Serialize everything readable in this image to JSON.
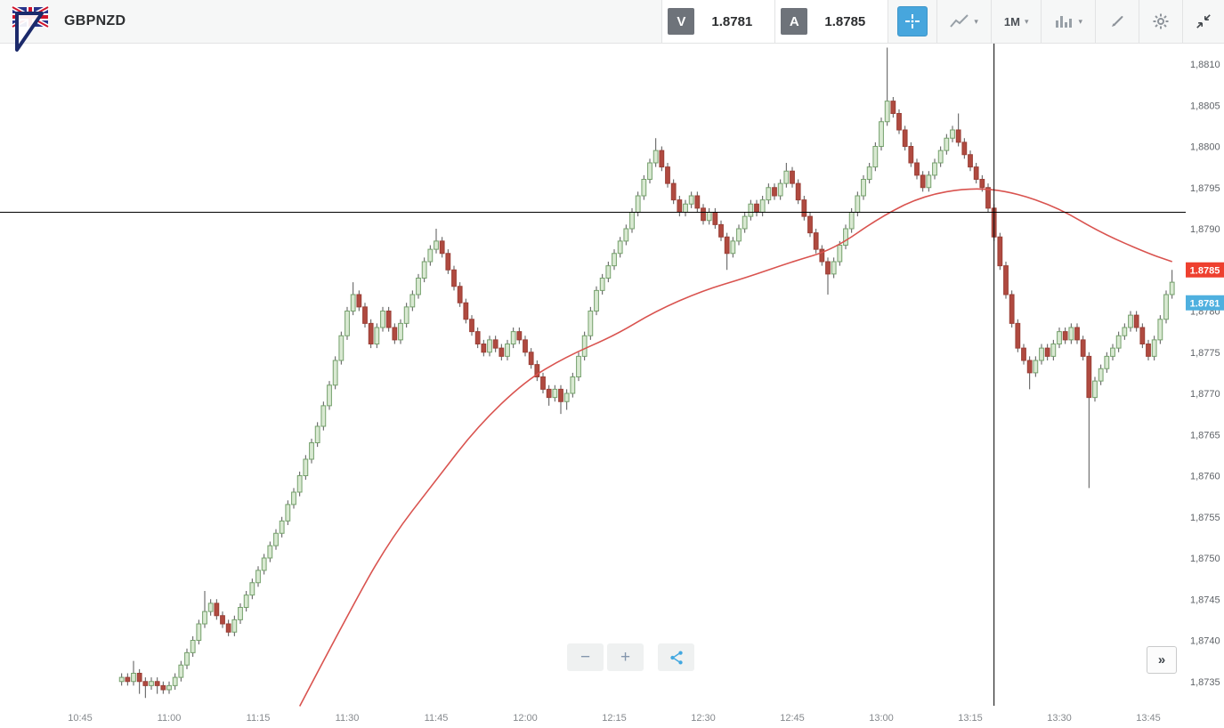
{
  "toolbar": {
    "symbol": "GBPNZD",
    "sell": {
      "label": "V",
      "price": "1.8781"
    },
    "buy": {
      "label": "A",
      "price": "1.8785"
    },
    "timeframe": "1M"
  },
  "icons": {
    "chevron_down": "▾"
  },
  "chart_controls": {
    "zoom_out": "−",
    "zoom_in": "+",
    "expand": "»"
  },
  "chart_data": {
    "type": "candlestick",
    "symbol": "GBPNZD",
    "interval": "1m",
    "start_time": "10:52",
    "pip_base": 1.87,
    "pip_size": 0.0001,
    "units_note": "ohlc and ma points are pips (0.0001) above pip_base",
    "visible_price_range": [
      1.8732,
      1.8813
    ],
    "x_ticks": [
      "10:45",
      "11:00",
      "11:15",
      "11:30",
      "11:45",
      "12:00",
      "12:15",
      "12:30",
      "12:45",
      "13:00",
      "13:15",
      "13:30",
      "13:45"
    ],
    "y_ticks": [
      "1,8810",
      "1,8805",
      "1,8800",
      "1,8795",
      "1,8790",
      "1,8785",
      "1,8780",
      "1,8775",
      "1,8770",
      "1,8765",
      "1,8760",
      "1,8755",
      "1,8750",
      "1,8745",
      "1,8740",
      "1,8735"
    ],
    "price_line": 1.8792,
    "time_marker": "13:19",
    "bid_badge": {
      "value": 1.8781,
      "text": "1.8781",
      "color": "#4fb0df"
    },
    "ask_badge": {
      "value": 1.8785,
      "text": "1.8785",
      "color": "#ee402f"
    },
    "ma_line": {
      "name": "moving-average",
      "color": "#d9534f",
      "points": [
        [
          31,
          32
        ],
        [
          39,
          43
        ],
        [
          46,
          52
        ],
        [
          54,
          59.5
        ],
        [
          61,
          66
        ],
        [
          69,
          71.5
        ],
        [
          76,
          74.5
        ],
        [
          84,
          77
        ],
        [
          91,
          80
        ],
        [
          99,
          82.5
        ],
        [
          106,
          84
        ],
        [
          114,
          86
        ],
        [
          121,
          87.5
        ],
        [
          129,
          91.5
        ],
        [
          136,
          94
        ],
        [
          144,
          95
        ],
        [
          151,
          94.5
        ],
        [
          159,
          92.5
        ],
        [
          166,
          89.5
        ],
        [
          174,
          87
        ],
        [
          178,
          86
        ]
      ]
    },
    "colors": {
      "up_fill": "#d9e9d2",
      "up_stroke": "#74a06b",
      "down_fill": "#b04a40",
      "down_stroke": "#9a3f36",
      "wick": "#555555",
      "price_line": "#000000",
      "time_marker": "#000000"
    },
    "candles": [
      [
        35,
        36,
        34.5,
        35.5
      ],
      [
        35.5,
        36,
        34.5,
        35
      ],
      [
        35,
        37.5,
        34.5,
        36
      ],
      [
        36,
        36.5,
        33.5,
        35
      ],
      [
        35,
        35.5,
        33,
        34.5
      ],
      [
        34.5,
        35.5,
        34,
        35
      ],
      [
        35,
        35.5,
        33.5,
        34.5
      ],
      [
        34.5,
        35,
        33.5,
        34
      ],
      [
        34,
        35,
        33.5,
        34.5
      ],
      [
        34.5,
        36,
        34,
        35.5
      ],
      [
        35.5,
        37.5,
        35,
        37
      ],
      [
        37,
        39,
        36.5,
        38.5
      ],
      [
        38.5,
        40.5,
        38,
        40
      ],
      [
        40,
        42.5,
        39.5,
        42
      ],
      [
        42,
        46,
        41.5,
        43.5
      ],
      [
        43.5,
        45,
        43,
        44.5
      ],
      [
        44.5,
        45,
        42.5,
        43
      ],
      [
        43,
        43.5,
        41.5,
        42
      ],
      [
        42,
        42.5,
        40.5,
        41
      ],
      [
        41,
        43,
        40.5,
        42.5
      ],
      [
        42.5,
        44.5,
        42,
        44
      ],
      [
        44,
        46,
        43.5,
        45.5
      ],
      [
        45.5,
        47.5,
        45,
        47
      ],
      [
        47,
        49,
        46.5,
        48.5
      ],
      [
        48.5,
        50.5,
        48,
        50
      ],
      [
        50,
        52,
        49.5,
        51.5
      ],
      [
        51.5,
        53.5,
        51,
        53
      ],
      [
        53,
        55,
        52.5,
        54.5
      ],
      [
        54.5,
        57,
        54,
        56.5
      ],
      [
        56.5,
        58.5,
        56,
        58
      ],
      [
        58,
        60.5,
        57.5,
        60
      ],
      [
        60,
        62.5,
        59.5,
        62
      ],
      [
        62,
        64.5,
        61.5,
        64
      ],
      [
        64,
        66.5,
        63.5,
        66
      ],
      [
        66,
        69,
        65.5,
        68.5
      ],
      [
        68.5,
        71.5,
        68,
        71
      ],
      [
        71,
        74.5,
        70.5,
        74
      ],
      [
        74,
        77.5,
        73.5,
        77
      ],
      [
        77,
        80.5,
        76.5,
        80
      ],
      [
        80,
        83.5,
        79.5,
        82
      ],
      [
        82,
        82.5,
        80,
        80.5
      ],
      [
        80.5,
        81,
        78,
        78.5
      ],
      [
        78.5,
        79,
        75.5,
        76
      ],
      [
        76,
        78.5,
        75.5,
        78
      ],
      [
        78,
        80.5,
        77.5,
        80
      ],
      [
        80,
        80.5,
        77.5,
        78
      ],
      [
        78,
        78.5,
        76,
        76.5
      ],
      [
        76.5,
        79,
        76,
        78.5
      ],
      [
        78.5,
        81,
        78,
        80.5
      ],
      [
        80.5,
        82.5,
        80,
        82
      ],
      [
        82,
        84.5,
        81.5,
        84
      ],
      [
        84,
        86.5,
        83.5,
        86
      ],
      [
        86,
        88,
        85.5,
        87.5
      ],
      [
        87.5,
        90,
        87,
        88.5
      ],
      [
        88.5,
        89,
        86.5,
        87
      ],
      [
        87,
        87.5,
        84.5,
        85
      ],
      [
        85,
        85.5,
        82.5,
        83
      ],
      [
        83,
        83.5,
        80.5,
        81
      ],
      [
        81,
        81.5,
        78.5,
        79
      ],
      [
        79,
        79.5,
        77,
        77.5
      ],
      [
        77.5,
        78,
        75.5,
        76
      ],
      [
        76,
        76.5,
        74.5,
        75
      ],
      [
        75,
        77,
        74.5,
        76.5
      ],
      [
        76.5,
        77,
        75,
        75.5
      ],
      [
        75.5,
        76,
        74,
        74.5
      ],
      [
        74.5,
        76.5,
        74,
        76
      ],
      [
        76,
        78,
        75.5,
        77.5
      ],
      [
        77.5,
        78,
        76,
        76.5
      ],
      [
        76.5,
        77,
        74.5,
        75
      ],
      [
        75,
        75.5,
        73,
        73.5
      ],
      [
        73.5,
        74,
        71.5,
        72
      ],
      [
        72,
        72.5,
        70,
        70.5
      ],
      [
        70.5,
        71,
        68.5,
        69.5
      ],
      [
        69.5,
        71,
        69,
        70.5
      ],
      [
        70.5,
        71,
        67.5,
        69
      ],
      [
        69,
        70.5,
        68,
        70
      ],
      [
        70,
        72.5,
        69.5,
        72
      ],
      [
        72,
        75,
        71.5,
        74.5
      ],
      [
        74.5,
        77.5,
        74,
        77
      ],
      [
        77,
        80.5,
        76.5,
        80
      ],
      [
        80,
        83,
        79.5,
        82.5
      ],
      [
        82.5,
        84.5,
        82,
        84
      ],
      [
        84,
        86,
        83.5,
        85.5
      ],
      [
        85.5,
        87.5,
        85,
        87
      ],
      [
        87,
        89,
        86.5,
        88.5
      ],
      [
        88.5,
        90.5,
        88,
        90
      ],
      [
        90,
        92.5,
        89.5,
        92
      ],
      [
        92,
        94.5,
        91.5,
        94
      ],
      [
        94,
        96.5,
        93.5,
        96
      ],
      [
        96,
        98.5,
        95.5,
        98
      ],
      [
        98,
        101,
        97.5,
        99.5
      ],
      [
        99.5,
        100,
        97,
        97.5
      ],
      [
        97.5,
        98,
        95,
        95.5
      ],
      [
        95.5,
        96,
        93,
        93.5
      ],
      [
        93.5,
        94,
        91.5,
        92
      ],
      [
        92,
        93.5,
        91.5,
        93
      ],
      [
        93,
        94.5,
        92.5,
        94
      ],
      [
        94,
        94.5,
        92,
        92.5
      ],
      [
        92.5,
        93,
        90.5,
        91
      ],
      [
        91,
        92.5,
        90.5,
        92
      ],
      [
        92,
        92.5,
        90,
        90.5
      ],
      [
        90.5,
        91,
        88.5,
        89
      ],
      [
        89,
        89.5,
        85,
        87
      ],
      [
        87,
        89,
        86.5,
        88.5
      ],
      [
        88.5,
        90.5,
        88,
        90
      ],
      [
        90,
        92,
        89.5,
        91.5
      ],
      [
        91.5,
        93.5,
        91,
        93
      ],
      [
        93,
        93.5,
        91.5,
        92
      ],
      [
        92,
        94,
        91.5,
        93.5
      ],
      [
        93.5,
        95.5,
        93,
        95
      ],
      [
        95,
        95.5,
        93.5,
        94
      ],
      [
        94,
        96,
        93.5,
        95.5
      ],
      [
        95.5,
        98,
        95,
        97
      ],
      [
        97,
        97.5,
        95,
        95.5
      ],
      [
        95.5,
        96,
        93,
        93.5
      ],
      [
        93.5,
        94,
        91,
        91.5
      ],
      [
        91.5,
        92,
        89,
        89.5
      ],
      [
        89.5,
        90,
        87,
        87.5
      ],
      [
        87.5,
        88,
        85.5,
        86
      ],
      [
        86,
        86.5,
        82,
        84.5
      ],
      [
        84.5,
        86.5,
        84,
        86
      ],
      [
        86,
        88.5,
        85.5,
        88
      ],
      [
        88,
        90.5,
        87.5,
        90
      ],
      [
        90,
        92.5,
        89.5,
        92
      ],
      [
        92,
        94.5,
        91.5,
        94
      ],
      [
        94,
        96.5,
        93.5,
        96
      ],
      [
        96,
        98,
        95.5,
        97.5
      ],
      [
        97.5,
        100.5,
        97,
        100
      ],
      [
        100,
        103.5,
        99.5,
        103
      ],
      [
        103,
        112,
        102.5,
        105.5
      ],
      [
        105.5,
        106,
        103.5,
        104
      ],
      [
        104,
        104.5,
        101.5,
        102
      ],
      [
        102,
        102.5,
        99.5,
        100
      ],
      [
        100,
        100.5,
        97.5,
        98
      ],
      [
        98,
        98.5,
        96,
        96.5
      ],
      [
        96.5,
        97,
        94.5,
        95
      ],
      [
        95,
        97,
        94.5,
        96.5
      ],
      [
        96.5,
        98.5,
        96,
        98
      ],
      [
        98,
        100,
        97.5,
        99.5
      ],
      [
        99.5,
        101.5,
        99,
        101
      ],
      [
        101,
        102.5,
        100.5,
        102
      ],
      [
        102,
        104,
        100,
        100.5
      ],
      [
        100.5,
        101,
        98.5,
        99
      ],
      [
        99,
        99.5,
        97,
        97.5
      ],
      [
        97.5,
        98,
        95.5,
        96
      ],
      [
        96,
        96.5,
        94.5,
        95
      ],
      [
        95,
        95.5,
        92,
        92.5
      ],
      [
        92.5,
        93,
        88.5,
        89
      ],
      [
        89,
        89.5,
        85,
        85.5
      ],
      [
        85.5,
        86,
        81.5,
        82
      ],
      [
        82,
        82.5,
        78,
        78.5
      ],
      [
        78.5,
        79,
        75,
        75.5
      ],
      [
        75.5,
        76,
        73.5,
        74
      ],
      [
        74,
        74.5,
        70.5,
        72.5
      ],
      [
        72.5,
        74.5,
        72,
        74
      ],
      [
        74,
        76,
        73.5,
        75.5
      ],
      [
        75.5,
        76,
        74,
        74.5
      ],
      [
        74.5,
        76.5,
        74,
        76
      ],
      [
        76,
        78,
        75.5,
        77.5
      ],
      [
        77.5,
        78,
        76,
        76.5
      ],
      [
        76.5,
        78.5,
        76,
        78
      ],
      [
        78,
        78.5,
        76,
        76.5
      ],
      [
        76.5,
        77,
        74,
        74.5
      ],
      [
        74.5,
        75,
        58.5,
        69.5
      ],
      [
        69.5,
        72,
        69,
        71.5
      ],
      [
        71.5,
        73.5,
        71,
        73
      ],
      [
        73,
        75,
        72.5,
        74.5
      ],
      [
        74.5,
        76,
        74,
        75.5
      ],
      [
        75.5,
        77.5,
        75,
        77
      ],
      [
        77,
        78.5,
        76.5,
        78
      ],
      [
        78,
        80,
        77.5,
        79.5
      ],
      [
        79.5,
        80,
        77.5,
        78
      ],
      [
        78,
        78.5,
        75.5,
        76
      ],
      [
        76,
        76.5,
        74,
        74.5
      ],
      [
        74.5,
        77,
        74,
        76.5
      ],
      [
        76.5,
        79.5,
        76,
        79
      ],
      [
        79,
        82.5,
        78.5,
        82
      ],
      [
        82,
        85,
        81.5,
        83.5
      ]
    ]
  }
}
